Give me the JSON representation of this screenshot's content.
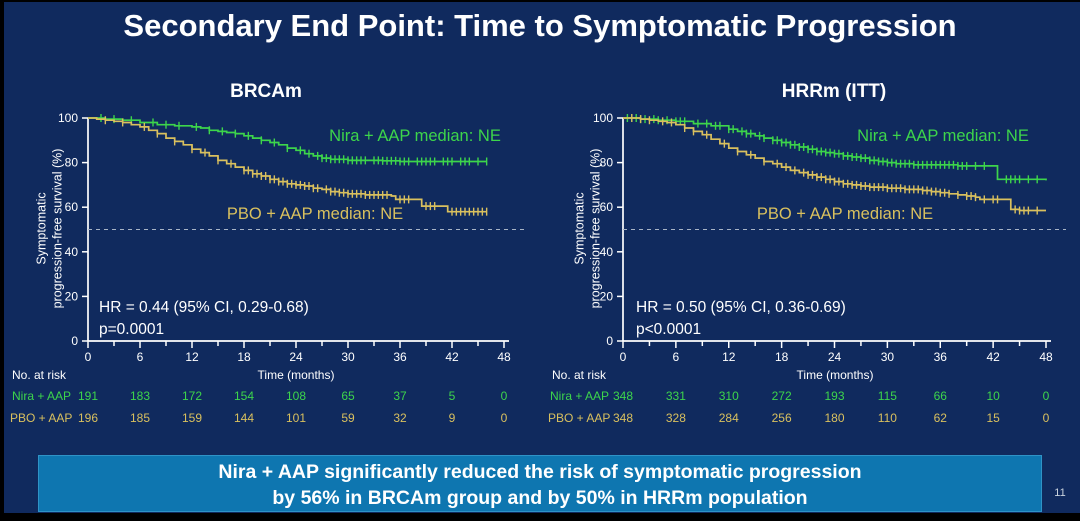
{
  "slide": {
    "title": "Secondary End Point: Time to Symptomatic Progression",
    "banner_line1": "Nira + AAP significantly reduced the risk of symptomatic progression",
    "banner_line2": "by 56% in BRCAm group and by 50% in HRRm population",
    "page_number": "11"
  },
  "colors": {
    "background": "#102a5e",
    "banner_bg": "#0e76b0",
    "nira_green": "#3dd54b",
    "pbo_yellow": "#d9c05e",
    "axis_white": "#ffffff",
    "reference_dash": "#a8b4c6"
  },
  "chart_data": [
    {
      "type": "line",
      "variant": "kaplan-meier-step",
      "title": "BRCAm",
      "ylabel_line1": "Symptomatic",
      "ylabel_line2": "progression-free survival (%)",
      "xlabel": "Time (months)",
      "xlim": [
        0,
        48
      ],
      "ylim": [
        0,
        100
      ],
      "x_ticks": [
        0,
        6,
        12,
        18,
        24,
        30,
        36,
        42,
        48
      ],
      "y_ticks": [
        0,
        20,
        40,
        60,
        80,
        100
      ],
      "reference_line_y": 50,
      "hr_text": "HR = 0.44 (95% CI, 0.29-0.68)",
      "p_text": "p=0.0001",
      "series": [
        {
          "name": "Nira + AAP",
          "label": "Nira + AAP median: NE",
          "color": "#3dd54b",
          "points": [
            [
              0,
              100
            ],
            [
              2,
              99.5
            ],
            [
              4,
              99
            ],
            [
              6,
              98
            ],
            [
              8,
              97
            ],
            [
              10,
              96.5
            ],
            [
              12,
              96
            ],
            [
              13,
              95.5
            ],
            [
              14,
              94.5
            ],
            [
              15,
              94
            ],
            [
              16,
              93.5
            ],
            [
              17,
              93
            ],
            [
              18,
              92
            ],
            [
              19,
              91
            ],
            [
              20,
              90
            ],
            [
              21,
              89
            ],
            [
              22,
              88
            ],
            [
              23,
              86.5
            ],
            [
              24,
              85.5
            ],
            [
              25,
              84
            ],
            [
              26,
              83
            ],
            [
              27,
              82
            ],
            [
              28,
              81.5
            ],
            [
              30,
              81
            ],
            [
              34,
              80.8
            ],
            [
              36,
              80.5
            ],
            [
              46,
              80.5
            ]
          ],
          "censor_months": [
            1.5,
            3,
            5,
            7.5,
            9,
            10.5,
            12.5,
            14,
            15.5,
            17,
            18.5,
            20,
            21.5,
            23,
            24.5,
            25.5,
            26.5,
            27,
            27.5,
            28,
            28.5,
            29,
            29.5,
            30,
            30.5,
            31,
            31.5,
            32,
            33,
            33.5,
            34,
            34.5,
            35,
            35.5,
            36,
            36.5,
            37,
            38,
            38.5,
            39,
            39.5,
            40,
            41,
            41.5,
            42,
            43,
            43.5,
            44,
            45,
            46
          ]
        },
        {
          "name": "PBO + AAP",
          "label": "PBO + AAP median: NE",
          "color": "#d9c05e",
          "points": [
            [
              0,
              100
            ],
            [
              1,
              99.5
            ],
            [
              2,
              99
            ],
            [
              3,
              98.5
            ],
            [
              4,
              98
            ],
            [
              5,
              97
            ],
            [
              6,
              96
            ],
            [
              7,
              94.5
            ],
            [
              8,
              93
            ],
            [
              9,
              91
            ],
            [
              10,
              89.5
            ],
            [
              11,
              88
            ],
            [
              12,
              86
            ],
            [
              13,
              84.5
            ],
            [
              14,
              83
            ],
            [
              15,
              81
            ],
            [
              16,
              79.5
            ],
            [
              17,
              78
            ],
            [
              18,
              76.5
            ],
            [
              19,
              75
            ],
            [
              20,
              74
            ],
            [
              21,
              72.5
            ],
            [
              22,
              71.5
            ],
            [
              23,
              70.5
            ],
            [
              24,
              70
            ],
            [
              25,
              69.5
            ],
            [
              26,
              68.5
            ],
            [
              27,
              68
            ],
            [
              28,
              67
            ],
            [
              29,
              66.5
            ],
            [
              30,
              66
            ],
            [
              32,
              65.5
            ],
            [
              35,
              65
            ],
            [
              35.5,
              63.5
            ],
            [
              38.5,
              60.5
            ],
            [
              41.5,
              58
            ],
            [
              46,
              58
            ]
          ],
          "censor_months": [
            2,
            4,
            6.5,
            8,
            10,
            12,
            13.5,
            15,
            16.5,
            18,
            18.5,
            19,
            19.5,
            20,
            20.5,
            21,
            21.5,
            22,
            22.5,
            23,
            23.5,
            24,
            24.5,
            25,
            25.5,
            26,
            26.5,
            27.5,
            28,
            28.5,
            29,
            29.5,
            30,
            30.5,
            31,
            31.5,
            32,
            32.5,
            33,
            33.5,
            34,
            34.5,
            36,
            36.5,
            37,
            39,
            39.5,
            40,
            42,
            42.5,
            43,
            43.5,
            44,
            44.5,
            45,
            45.5,
            46
          ]
        }
      ],
      "risk_table": {
        "header": "No. at risk",
        "rows": [
          {
            "label": "Nira + AAP",
            "color": "#3dd54b",
            "values": [
              191,
              183,
              172,
              154,
              108,
              65,
              37,
              5,
              0
            ]
          },
          {
            "label": "PBO + AAP",
            "color": "#d9c05e",
            "values": [
              196,
              185,
              159,
              144,
              101,
              59,
              32,
              9,
              0
            ]
          }
        ]
      }
    },
    {
      "type": "line",
      "variant": "kaplan-meier-step",
      "title": "HRRm (ITT)",
      "ylabel_line1": "Symptomatic",
      "ylabel_line2": "progression-free survival (%)",
      "xlabel": "Time (months)",
      "xlim": [
        0,
        48
      ],
      "ylim": [
        0,
        100
      ],
      "x_ticks": [
        0,
        6,
        12,
        18,
        24,
        30,
        36,
        42,
        48
      ],
      "y_ticks": [
        0,
        20,
        40,
        60,
        80,
        100
      ],
      "reference_line_y": 50,
      "hr_text": "HR = 0.50 (95% CI, 0.36-0.69)",
      "p_text": "p<0.0001",
      "series": [
        {
          "name": "Nira + AAP",
          "label": "Nira + AAP median: NE",
          "color": "#3dd54b",
          "points": [
            [
              0,
              100
            ],
            [
              2,
              99.5
            ],
            [
              4,
              99
            ],
            [
              6,
              98.5
            ],
            [
              8,
              97.5
            ],
            [
              10,
              96.5
            ],
            [
              12,
              95
            ],
            [
              13,
              94
            ],
            [
              14,
              93
            ],
            [
              15,
              92
            ],
            [
              16,
              91
            ],
            [
              17,
              90
            ],
            [
              18,
              89
            ],
            [
              19,
              88
            ],
            [
              20,
              87
            ],
            [
              21,
              86
            ],
            [
              22,
              85
            ],
            [
              23,
              84.5
            ],
            [
              24,
              84
            ],
            [
              25,
              83
            ],
            [
              26,
              82.5
            ],
            [
              27,
              82
            ],
            [
              28,
              81
            ],
            [
              29,
              80.5
            ],
            [
              30,
              80
            ],
            [
              31,
              79.5
            ],
            [
              33,
              79
            ],
            [
              38,
              78.5
            ],
            [
              42.5,
              72.5
            ],
            [
              46,
              72.5
            ],
            [
              48,
              72
            ]
          ],
          "censor_months": [
            0.5,
            1,
            1.5,
            2,
            2.5,
            3.5,
            4,
            5,
            6,
            6.5,
            7,
            8.5,
            9.5,
            10.5,
            11,
            12,
            12.5,
            13.5,
            14,
            14.5,
            15.5,
            16,
            17,
            17.5,
            18,
            18.5,
            19,
            19.5,
            20,
            20.5,
            21,
            21.5,
            22,
            22.5,
            23,
            23.5,
            24,
            24.5,
            25,
            25.5,
            26,
            26.5,
            27,
            27.5,
            28,
            28.5,
            29,
            29.5,
            30,
            30.5,
            31,
            31.5,
            32,
            32.5,
            33,
            33.5,
            34,
            34.5,
            35,
            35.5,
            36,
            36.5,
            37,
            37.5,
            38,
            38.5,
            39,
            40,
            41,
            43.5,
            44,
            44.5,
            45,
            46,
            47
          ]
        },
        {
          "name": "PBO + AAP",
          "label": "PBO + AAP median: NE",
          "color": "#d9c05e",
          "points": [
            [
              0,
              100
            ],
            [
              2,
              99.5
            ],
            [
              3,
              99
            ],
            [
              4,
              98.5
            ],
            [
              5,
              98
            ],
            [
              6,
              97
            ],
            [
              7,
              95.5
            ],
            [
              8,
              94
            ],
            [
              9,
              92.5
            ],
            [
              10,
              90.5
            ],
            [
              11,
              88.5
            ],
            [
              12,
              86.5
            ],
            [
              13,
              85
            ],
            [
              14,
              83.5
            ],
            [
              15,
              82
            ],
            [
              16,
              80.5
            ],
            [
              17,
              79.5
            ],
            [
              18,
              78
            ],
            [
              19,
              76.5
            ],
            [
              20,
              75.5
            ],
            [
              21,
              74.5
            ],
            [
              22,
              73.5
            ],
            [
              23,
              72.5
            ],
            [
              24,
              71.5
            ],
            [
              25,
              70.5
            ],
            [
              26,
              70
            ],
            [
              27,
              69.5
            ],
            [
              28,
              69
            ],
            [
              30,
              68.5
            ],
            [
              32,
              68
            ],
            [
              34,
              67.5
            ],
            [
              35,
              67
            ],
            [
              36,
              66.5
            ],
            [
              37,
              66
            ],
            [
              38,
              65.5
            ],
            [
              39,
              65
            ],
            [
              40,
              64.5
            ],
            [
              40.5,
              63.5
            ],
            [
              44,
              59
            ],
            [
              45,
              58.5
            ],
            [
              48,
              58.5
            ]
          ],
          "censor_months": [
            1,
            2,
            3,
            4.5,
            5.5,
            7,
            8,
            9.5,
            11.5,
            13,
            14.5,
            16,
            17.5,
            18.5,
            19.5,
            20.5,
            21,
            21.5,
            22,
            22.5,
            23,
            23.5,
            24,
            24.5,
            25,
            25.5,
            26,
            26.5,
            27,
            27.5,
            28,
            28.5,
            29,
            29.5,
            30,
            30.5,
            31,
            31.5,
            32,
            32.5,
            33,
            33.5,
            34,
            34.5,
            35,
            35.5,
            36,
            36.5,
            37,
            38,
            39,
            39.5,
            40,
            41,
            42,
            42.5,
            44.5,
            45,
            45.5,
            46,
            47
          ]
        }
      ],
      "risk_table": {
        "header": "No. at risk",
        "rows": [
          {
            "label": "Nira + AAP",
            "color": "#3dd54b",
            "values": [
              348,
              331,
              310,
              272,
              193,
              115,
              66,
              10,
              0
            ]
          },
          {
            "label": "PBO + AAP",
            "color": "#d9c05e",
            "values": [
              348,
              328,
              284,
              256,
              180,
              110,
              62,
              15,
              0
            ]
          }
        ]
      }
    }
  ]
}
